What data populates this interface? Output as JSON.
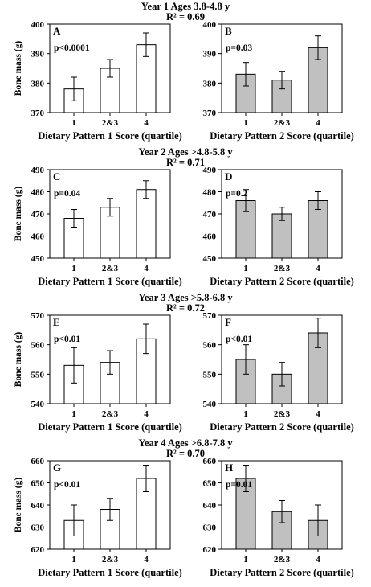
{
  "chart_data": [
    {
      "type": "bar",
      "panel": "A",
      "year_title": "Year 1   Ages 3.8-4.8 y",
      "r2": "R² = 0.69",
      "pvalue": "p<0.0001",
      "categories": [
        "1",
        "2&3",
        "4"
      ],
      "values": [
        378,
        385,
        393
      ],
      "errors": [
        4,
        3,
        4
      ],
      "xlabel": "Dietary Pattern 1 Score (quartile)",
      "ylabel": "Bone mass (g)",
      "ylim": [
        370,
        400
      ],
      "yticks": [
        "370",
        "380",
        "390",
        "400"
      ],
      "fill": "#ffffff"
    },
    {
      "type": "bar",
      "panel": "B",
      "pvalue": "p=0.03",
      "categories": [
        "1",
        "2&3",
        "4"
      ],
      "values": [
        383,
        381,
        392
      ],
      "errors": [
        4,
        3,
        4
      ],
      "xlabel": "Dietary Pattern 2 Score (quartile)",
      "ylim": [
        370,
        400
      ],
      "yticks": [
        "370",
        "380",
        "390",
        "400"
      ],
      "fill": "#c0c0c0"
    },
    {
      "type": "bar",
      "panel": "C",
      "year_title": "Year 2   Ages >4.8-5.8 y",
      "r2": "R² = 0.71",
      "pvalue": "p=0.04",
      "categories": [
        "1",
        "2&3",
        "4"
      ],
      "values": [
        468,
        473,
        481
      ],
      "errors": [
        4,
        4,
        4
      ],
      "xlabel": "Dietary Pattern 1 Score (quartile)",
      "ylabel": "Bone mass (g)",
      "ylim": [
        450,
        490
      ],
      "yticks": [
        "450",
        "460",
        "470",
        "480",
        "490"
      ],
      "fill": "#ffffff"
    },
    {
      "type": "bar",
      "panel": "D",
      "pvalue": "p=0.2",
      "categories": [
        "1",
        "2&3",
        "4"
      ],
      "values": [
        476,
        470,
        476
      ],
      "errors": [
        5,
        3,
        4
      ],
      "xlabel": "Dietary Pattern 2 Score (quartile)",
      "ylim": [
        450,
        490
      ],
      "yticks": [
        "450",
        "460",
        "470",
        "480",
        "490"
      ],
      "fill": "#c0c0c0"
    },
    {
      "type": "bar",
      "panel": "E",
      "year_title": "Year 3   Ages >5.8-6.8 y",
      "r2": "R² = 0.72",
      "pvalue": "p<0.01",
      "categories": [
        "1",
        "2&3",
        "4"
      ],
      "values": [
        553,
        554,
        562
      ],
      "errors": [
        6,
        4,
        5
      ],
      "xlabel": "Dietary Pattern 1 Score (quartile)",
      "ylabel": "Bone mass (g)",
      "ylim": [
        540,
        570
      ],
      "yticks": [
        "540",
        "550",
        "560",
        "570"
      ],
      "fill": "#ffffff"
    },
    {
      "type": "bar",
      "panel": "F",
      "pvalue": "p<0.01",
      "categories": [
        "1",
        "2&3",
        "4"
      ],
      "values": [
        555,
        550,
        564
      ],
      "errors": [
        5,
        4,
        5
      ],
      "xlabel": "Dietary Pattern 2 Score (quartile)",
      "ylim": [
        540,
        570
      ],
      "yticks": [
        "540",
        "550",
        "560",
        "570"
      ],
      "fill": "#c0c0c0"
    },
    {
      "type": "bar",
      "panel": "G",
      "year_title": "Year 4   Ages >6.8-7.8 y",
      "r2": "R² = 0.70",
      "pvalue": "p<0.01",
      "categories": [
        "1",
        "2&3",
        "4"
      ],
      "values": [
        633,
        638,
        652
      ],
      "errors": [
        7,
        5,
        6
      ],
      "xlabel": "Dietary Pattern 1 Score (quartile)",
      "ylabel": "Bone mass (g)",
      "ylim": [
        620,
        660
      ],
      "yticks": [
        "620",
        "630",
        "640",
        "650",
        "660"
      ],
      "fill": "#ffffff"
    },
    {
      "type": "bar",
      "panel": "H",
      "pvalue": "p=0.01",
      "categories": [
        "1",
        "2&3",
        "4"
      ],
      "values": [
        652,
        637,
        633
      ],
      "errors": [
        6,
        5,
        7
      ],
      "xlabel": "Dietary Pattern 2 Score (quartile)",
      "ylim": [
        620,
        660
      ],
      "yticks": [
        "620",
        "630",
        "640",
        "650",
        "660"
      ],
      "fill": "#c0c0c0"
    }
  ]
}
